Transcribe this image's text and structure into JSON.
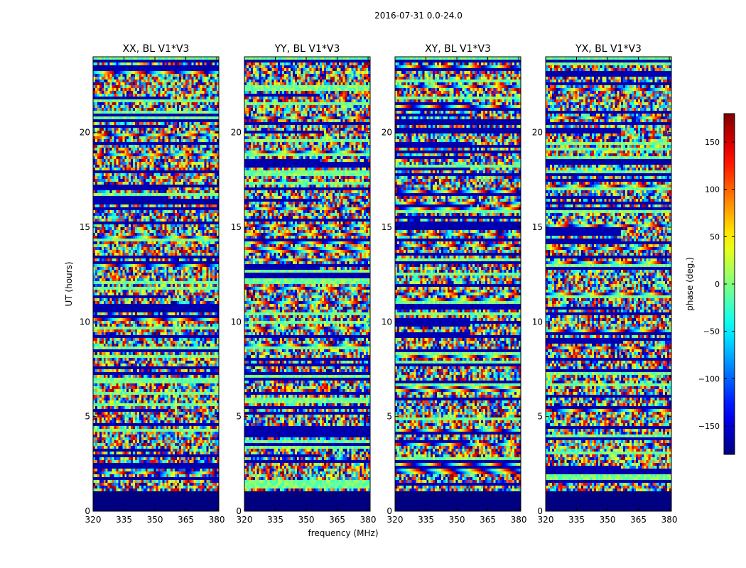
{
  "figure_title": "2016-07-31 0.0-24.0",
  "chart_data": {
    "type": "heatmap",
    "suptitle": "2016-07-31 0.0-24.0",
    "xlabel": "frequency (MHz)",
    "ylabel": "UT (hours)",
    "xlim": [
      320,
      381
    ],
    "ylim": [
      0,
      24
    ],
    "xticks": [
      "320",
      "335",
      "350",
      "365",
      "380"
    ],
    "yticks": [
      "0",
      "5",
      "10",
      "15",
      "20"
    ],
    "panels": [
      {
        "title": "XX, BL V1*V3",
        "seed": 11
      },
      {
        "title": "YY, BL V1*V3",
        "seed": 23
      },
      {
        "title": "XY, BL V1*V3",
        "seed": 37
      },
      {
        "title": "YX, BL V1*V3",
        "seed": 53
      }
    ],
    "no_data_below_hours": 1,
    "colorbar": {
      "label": "phase (deg.)",
      "colormap": "jet",
      "range": [
        -180,
        180
      ],
      "ticks": [
        "150",
        "100",
        "50",
        "0",
        "−50",
        "−100",
        "−150"
      ]
    }
  }
}
